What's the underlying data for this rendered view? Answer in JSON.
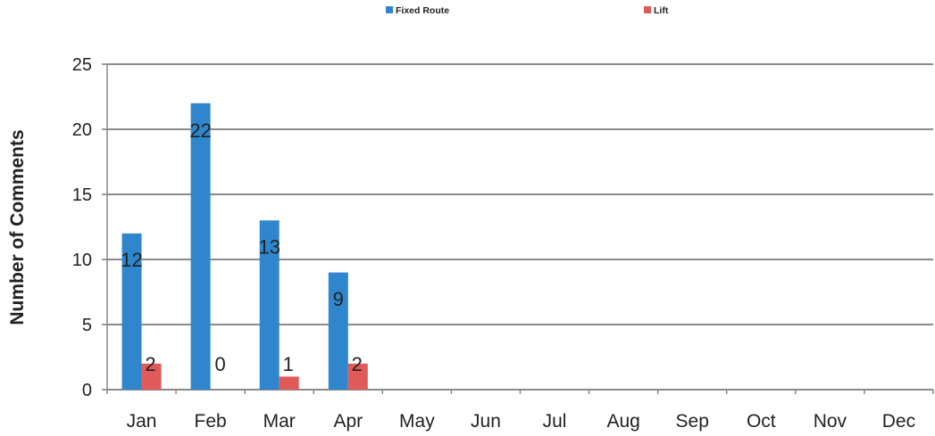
{
  "chart_data": {
    "type": "bar",
    "title": "",
    "xlabel": "",
    "ylabel": "Number of Comments",
    "categories": [
      "Jan",
      "Feb",
      "Mar",
      "Apr",
      "May",
      "Jun",
      "Jul",
      "Aug",
      "Sep",
      "Oct",
      "Nov",
      "Dec"
    ],
    "series": [
      {
        "name": "Fixed Route",
        "color": "#2f86cc",
        "values": [
          12,
          22,
          13,
          9,
          null,
          null,
          null,
          null,
          null,
          null,
          null,
          null
        ]
      },
      {
        "name": "Lift",
        "color": "#e05a5a",
        "values": [
          2,
          0,
          1,
          2,
          null,
          null,
          null,
          null,
          null,
          null,
          null,
          null
        ]
      }
    ],
    "ylim": [
      0,
      25
    ],
    "yticks": [
      0,
      5,
      10,
      15,
      20,
      25
    ],
    "grid": true,
    "legend_position": "top",
    "data_labels": true
  }
}
